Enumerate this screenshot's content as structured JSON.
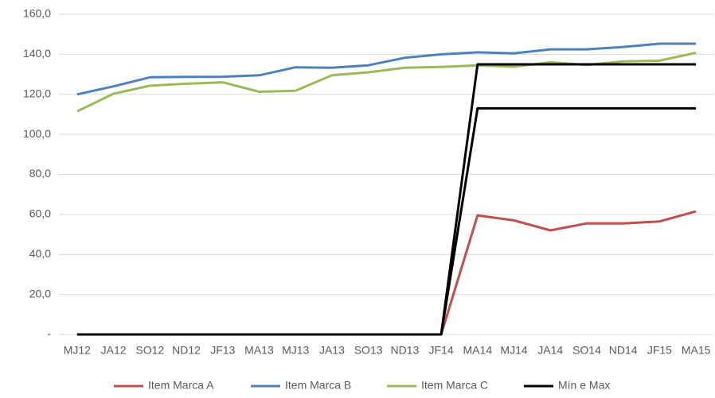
{
  "chart_data": {
    "type": "line",
    "categories": [
      "MJ12",
      "JA12",
      "SO12",
      "ND12",
      "JF13",
      "MA13",
      "MJ13",
      "JA13",
      "SO13",
      "ND13",
      "JF14",
      "MA14",
      "MJ14",
      "JA14",
      "SO14",
      "ND14",
      "JF15",
      "MA15"
    ],
    "series": [
      {
        "name": "Item Marca A",
        "color": "#c0504d",
        "values": [
          0,
          0,
          0,
          0,
          0,
          0,
          0,
          0,
          0,
          0,
          0,
          59.5,
          57,
          52,
          55.5,
          55.5,
          56.5,
          61.5
        ]
      },
      {
        "name": "Item Marca B",
        "color": "#4f81bd",
        "values": [
          120,
          124,
          128.5,
          128.7,
          128.8,
          129.5,
          133.5,
          133.3,
          134.5,
          138.3,
          140,
          141,
          140.5,
          142.5,
          142.5,
          143.7,
          145.3,
          145.3
        ]
      },
      {
        "name": "Item Marca C",
        "color": "#9bbb59",
        "values": [
          111.5,
          120.3,
          124.3,
          125.3,
          126,
          121.3,
          121.8,
          129.5,
          131,
          133.3,
          133.7,
          134.5,
          133.8,
          136,
          134.7,
          136.5,
          136.8,
          140.8
        ]
      },
      {
        "name": "Mín e Max",
        "color": "#000000",
        "values": [
          0,
          0,
          0,
          0,
          0,
          0,
          0,
          0,
          0,
          0,
          0,
          135,
          135,
          135,
          135,
          135,
          135,
          135
        ]
      },
      {
        "color": "#000000",
        "values": [
          0,
          0,
          0,
          0,
          0,
          0,
          0,
          0,
          0,
          0,
          0,
          113,
          113,
          113,
          113,
          113,
          113,
          113
        ]
      }
    ],
    "ylim": [
      0,
      160
    ],
    "yticks": [
      {
        "value": 0,
        "label": "-"
      },
      {
        "value": 20,
        "label": "20,0"
      },
      {
        "value": 40,
        "label": "40,0"
      },
      {
        "value": 60,
        "label": "60,0"
      },
      {
        "value": 80,
        "label": "80,0"
      },
      {
        "value": 100,
        "label": "100,0"
      },
      {
        "value": 120,
        "label": "120,0"
      },
      {
        "value": 140,
        "label": "140,0"
      },
      {
        "value": 160,
        "label": "160,0"
      }
    ],
    "grid": true,
    "legend": "bottom"
  }
}
